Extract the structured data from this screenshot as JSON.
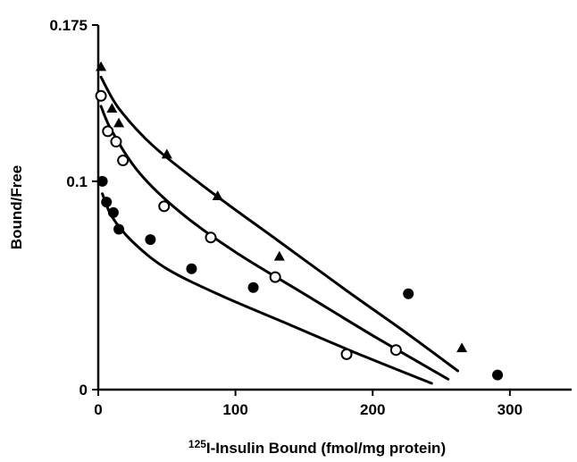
{
  "chart_data": {
    "type": "scatter",
    "xlabel": "125I-Insulin Bound (fmol/mg protein)",
    "xlabel_sup": "125",
    "xlabel_rest": "I-Insulin Bound (fmol/mg protein)",
    "ylabel": "Bound/Free",
    "xlim": [
      0,
      345
    ],
    "ylim": [
      0,
      0.175
    ],
    "x_ticks": [
      {
        "value": 0,
        "label": "0"
      },
      {
        "value": 100,
        "label": "100"
      },
      {
        "value": 200,
        "label": "200"
      },
      {
        "value": 300,
        "label": "300"
      }
    ],
    "y_ticks": [
      {
        "value": 0,
        "label": "0"
      },
      {
        "value": 0.1,
        "label": "0.1"
      },
      {
        "value": 0.175,
        "label": "0.175"
      }
    ],
    "grid": false,
    "series": [
      {
        "marker": "triangle",
        "color": "#000000",
        "points": [
          {
            "x": 2,
            "y": 0.155
          },
          {
            "x": 10,
            "y": 0.135
          },
          {
            "x": 15,
            "y": 0.128
          },
          {
            "x": 50,
            "y": 0.113
          },
          {
            "x": 87,
            "y": 0.093
          },
          {
            "x": 132,
            "y": 0.064
          },
          {
            "x": 265,
            "y": 0.02
          }
        ],
        "curve": [
          {
            "x": 2,
            "y": 0.15
          },
          {
            "x": 15,
            "y": 0.135
          },
          {
            "x": 40,
            "y": 0.117
          },
          {
            "x": 80,
            "y": 0.096
          },
          {
            "x": 130,
            "y": 0.072
          },
          {
            "x": 180,
            "y": 0.048
          },
          {
            "x": 225,
            "y": 0.027
          },
          {
            "x": 262,
            "y": 0.009
          }
        ]
      },
      {
        "marker": "open-circle",
        "color": "#000000",
        "points": [
          {
            "x": 2,
            "y": 0.141
          },
          {
            "x": 7,
            "y": 0.124
          },
          {
            "x": 13,
            "y": 0.119
          },
          {
            "x": 18,
            "y": 0.11
          },
          {
            "x": 48,
            "y": 0.088
          },
          {
            "x": 82,
            "y": 0.073
          },
          {
            "x": 129,
            "y": 0.054
          },
          {
            "x": 181,
            "y": 0.017
          },
          {
            "x": 217,
            "y": 0.019
          }
        ],
        "curve": [
          {
            "x": 2,
            "y": 0.136
          },
          {
            "x": 10,
            "y": 0.124
          },
          {
            "x": 30,
            "y": 0.104
          },
          {
            "x": 60,
            "y": 0.085
          },
          {
            "x": 100,
            "y": 0.066
          },
          {
            "x": 150,
            "y": 0.046
          },
          {
            "x": 200,
            "y": 0.026
          },
          {
            "x": 255,
            "y": 0.005
          }
        ]
      },
      {
        "marker": "filled-circle",
        "color": "#000000",
        "points": [
          {
            "x": 3,
            "y": 0.1
          },
          {
            "x": 6,
            "y": 0.09
          },
          {
            "x": 11,
            "y": 0.085
          },
          {
            "x": 15,
            "y": 0.077
          },
          {
            "x": 38,
            "y": 0.072
          },
          {
            "x": 68,
            "y": 0.058
          },
          {
            "x": 113,
            "y": 0.049
          },
          {
            "x": 226,
            "y": 0.046
          },
          {
            "x": 291,
            "y": 0.007
          }
        ],
        "curve": [
          {
            "x": 3,
            "y": 0.094
          },
          {
            "x": 10,
            "y": 0.083
          },
          {
            "x": 25,
            "y": 0.071
          },
          {
            "x": 50,
            "y": 0.058
          },
          {
            "x": 90,
            "y": 0.045
          },
          {
            "x": 140,
            "y": 0.031
          },
          {
            "x": 190,
            "y": 0.017
          },
          {
            "x": 243,
            "y": 0.003
          }
        ]
      }
    ]
  }
}
